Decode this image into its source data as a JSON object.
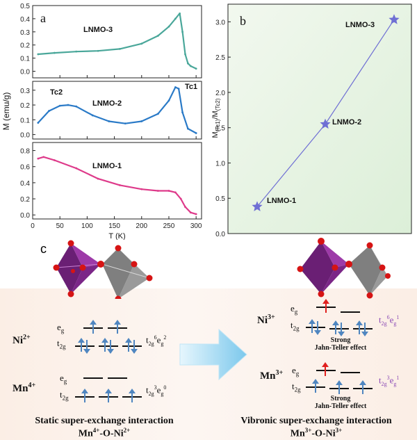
{
  "chart_data": [
    {
      "panel": "a",
      "type": "line",
      "xlabel": "T (K)",
      "ylabel": "M (emu/g)",
      "xlim": [
        0,
        310
      ],
      "x_ticks": [
        "0",
        "50",
        "100",
        "150",
        "200",
        "250",
        "300"
      ],
      "subplots": [
        {
          "name": "LNMO-3",
          "color": "#4aa79a",
          "ylim": [
            -0.05,
            0.5
          ],
          "y_ticks": [
            "0.0",
            "0.1",
            "0.2",
            "0.3",
            "0.4",
            "0.5"
          ],
          "x": [
            10,
            40,
            80,
            120,
            160,
            200,
            230,
            250,
            262,
            270,
            275,
            280,
            285,
            290,
            300
          ],
          "y": [
            0.13,
            0.14,
            0.15,
            0.155,
            0.17,
            0.21,
            0.27,
            0.34,
            0.4,
            0.44,
            0.3,
            0.13,
            0.06,
            0.04,
            0.02
          ]
        },
        {
          "name": "LNMO-2",
          "color": "#2a7ac7",
          "ylim": [
            -0.03,
            0.36
          ],
          "y_ticks": [
            "0.0",
            "0.1",
            "0.2",
            "0.3"
          ],
          "x": [
            10,
            30,
            50,
            65,
            80,
            110,
            140,
            170,
            200,
            230,
            250,
            262,
            268,
            275,
            285,
            300
          ],
          "y": [
            0.08,
            0.16,
            0.195,
            0.2,
            0.19,
            0.13,
            0.09,
            0.075,
            0.09,
            0.14,
            0.23,
            0.32,
            0.31,
            0.15,
            0.04,
            0.01
          ],
          "annotations": [
            "Tc2",
            "Tc1"
          ]
        },
        {
          "name": "LNMO-1",
          "color": "#de3a8a",
          "ylim": [
            -0.05,
            0.9
          ],
          "y_ticks": [
            "0.0",
            "0.2",
            "0.4",
            "0.6",
            "0.8"
          ],
          "x": [
            10,
            20,
            40,
            80,
            120,
            160,
            200,
            230,
            250,
            262,
            272,
            280,
            290,
            300
          ],
          "y": [
            0.7,
            0.72,
            0.68,
            0.58,
            0.45,
            0.37,
            0.32,
            0.3,
            0.3,
            0.28,
            0.2,
            0.1,
            0.03,
            0.01
          ]
        }
      ]
    },
    {
      "panel": "b",
      "type": "line",
      "ylabel": "M(Tc1)/M(Tc2)",
      "ylim": [
        0,
        3.25
      ],
      "y_ticks": [
        "0.0",
        "0.5",
        "1.0",
        "1.5",
        "2.0",
        "2.5",
        "3.0"
      ],
      "categories": [
        "LNMO-1",
        "LNMO-2",
        "LNMO-3"
      ],
      "values": [
        0.38,
        1.55,
        3.03
      ],
      "marker": "star",
      "color": "#6f6fd4",
      "background": "#dcefd8"
    }
  ],
  "panel_c": {
    "label": "c",
    "left": {
      "ni_ion": "Ni",
      "ni_charge": "2+",
      "ni_eg": "e",
      "ni_eg_sub": "g",
      "ni_t2g": "t",
      "ni_t2g_sub": "2g",
      "ni_config": [
        "t",
        "2g",
        "6",
        "e",
        "g",
        "2"
      ],
      "mn_ion": "Mn",
      "mn_charge": "4+",
      "mn_eg": "e",
      "mn_eg_sub": "g",
      "mn_t2g": "t",
      "mn_t2g_sub": "2g",
      "mn_config": [
        "t",
        "2g",
        "3",
        "e",
        "g",
        "0"
      ],
      "caption_line1": "Static super-exchange interaction",
      "caption_line2_a": "Mn",
      "caption_line2_a_sup": "4+",
      "caption_line2_b": "-O-Ni",
      "caption_line2_b_sup": "2+"
    },
    "right": {
      "ni_ion": "Ni",
      "ni_charge": "3+",
      "ni_eg": "e",
      "ni_eg_sub": "g",
      "ni_t2g": "t",
      "ni_t2g_sub": "2g",
      "ni_config": [
        "t",
        "2g",
        "6",
        "e",
        "g",
        "1"
      ],
      "mn_ion": "Mn",
      "mn_charge": "3+",
      "mn_eg": "e",
      "mn_eg_sub": "g",
      "mn_t2g": "t",
      "mn_t2g_sub": "2g",
      "mn_config": [
        "t",
        "2g",
        "3",
        "e",
        "g",
        "1"
      ],
      "jt_note_1": "Strong",
      "jt_note_2": "Jahn-Teller effect",
      "caption_line1": "Vibronic super-exchange interaction",
      "caption_line2_a": "Mn",
      "caption_line2_a_sup": "3+",
      "caption_line2_b": "-O-Ni",
      "caption_line2_b_sup": "3+"
    },
    "colors": {
      "arrow_blue": "#4f86c0",
      "arrow_red": "#e0201e",
      "config_purple": "#8a49b5",
      "octa_purple": "#8a2f94",
      "octa_grey": "#9a9a9a",
      "oxygen_red": "#d61414",
      "transition_arrow": "#8ecfea"
    }
  }
}
